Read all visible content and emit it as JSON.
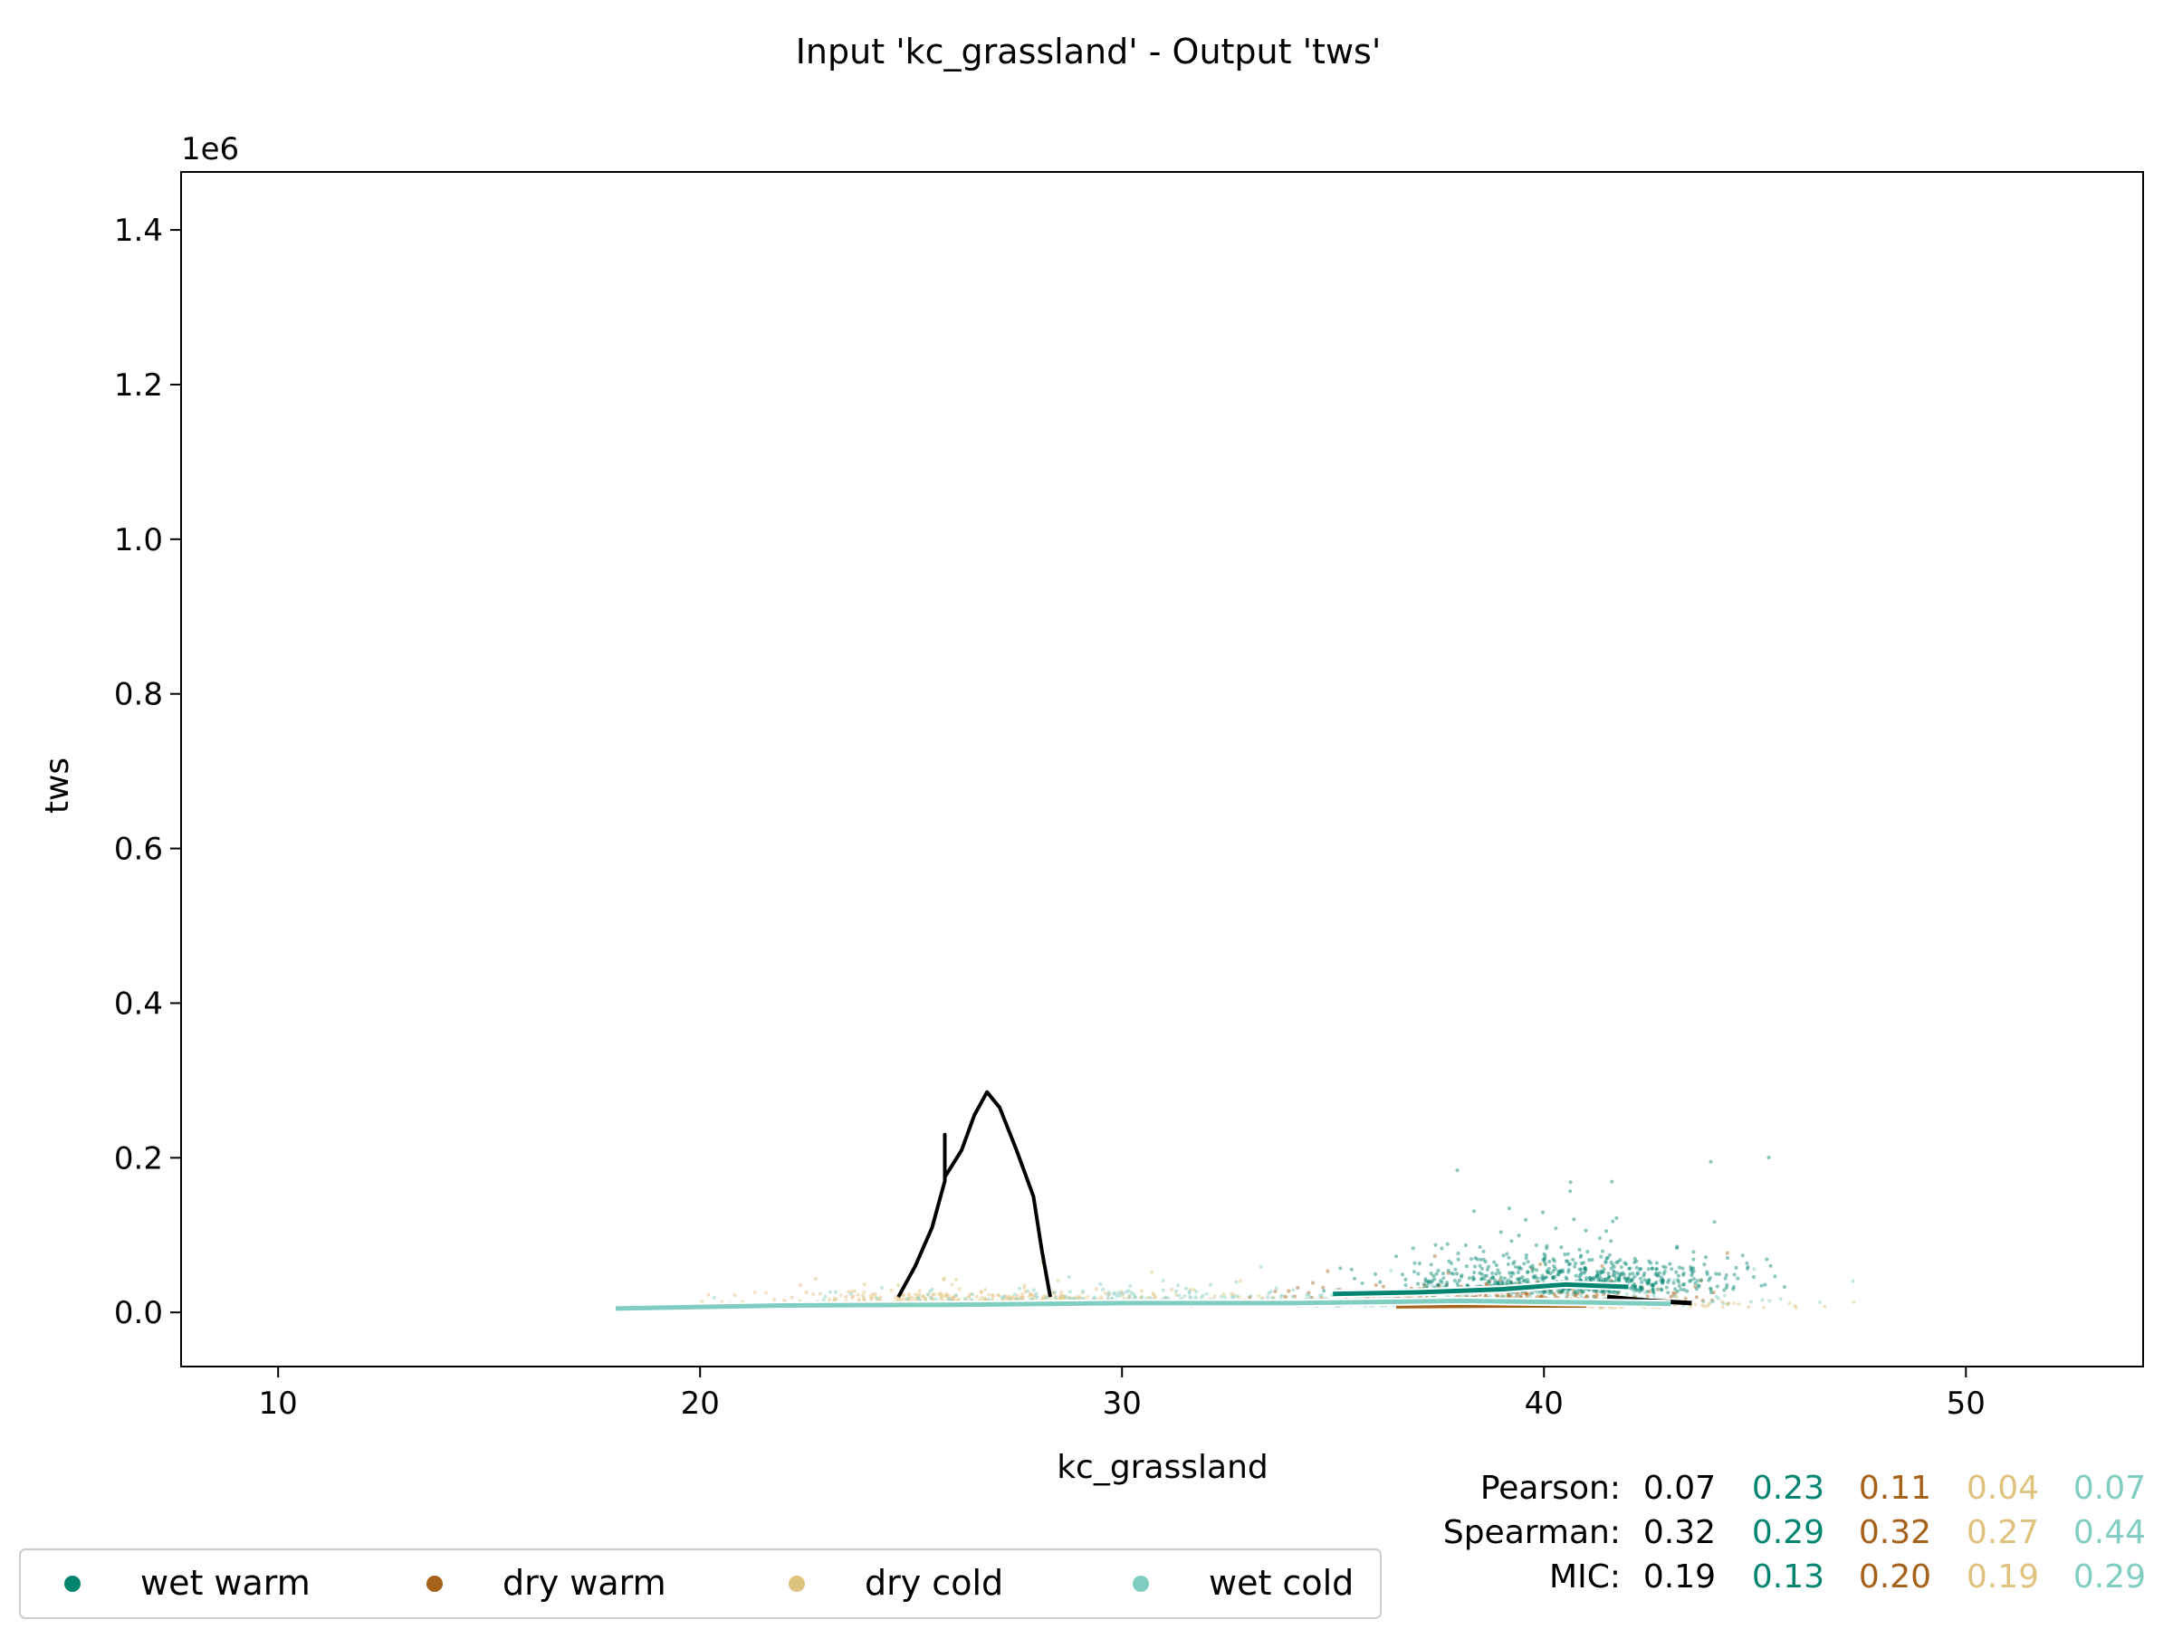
{
  "chart_data": {
    "type": "scatter",
    "title": "Input 'kc_grassland' - Output 'tws'",
    "xlabel": "kc_grassland",
    "ylabel": "tws",
    "y_offset_label": "1e6",
    "xlim": [
      7.7,
      54.2
    ],
    "ylim": [
      -70000,
      1475000
    ],
    "xticks": [
      10,
      20,
      30,
      40,
      50
    ],
    "yticks": [
      0.0,
      0.2,
      0.4,
      0.6,
      0.8,
      1.0,
      1.2,
      1.4
    ],
    "ytick_labels": [
      "0.0",
      "0.2",
      "0.4",
      "0.6",
      "0.8",
      "1.0",
      "1.2",
      "1.4"
    ],
    "grid": false,
    "legend_position": "bottom-left",
    "series": [
      {
        "name": "wet warm",
        "color": "#018571",
        "trend": [
          [
            35.0,
            24000
          ],
          [
            37.0,
            26000
          ],
          [
            39.0,
            30000
          ],
          [
            40.5,
            36000
          ],
          [
            42.0,
            33000
          ]
        ]
      },
      {
        "name": "dry warm",
        "color": "#a6611a",
        "trend": [
          [
            36.5,
            8000
          ],
          [
            38.0,
            8500
          ],
          [
            39.5,
            9000
          ],
          [
            41.0,
            9000
          ]
        ]
      },
      {
        "name": "dry cold",
        "color": "#dfc27d",
        "trend": [
          [
            18.5,
            4000
          ],
          [
            19.5,
            5000
          ],
          [
            20.3,
            6000
          ]
        ]
      },
      {
        "name": "wet cold",
        "color": "#80cdc1",
        "trend": [
          [
            18.0,
            5000
          ],
          [
            22.0,
            9000
          ],
          [
            26.0,
            10000
          ],
          [
            30.0,
            12000
          ],
          [
            34.0,
            12000
          ],
          [
            38.0,
            15000
          ],
          [
            41.0,
            13000
          ],
          [
            43.0,
            11000
          ]
        ]
      }
    ],
    "overall_trend": {
      "color": "#000000",
      "points": [
        [
          24.7,
          20000
        ],
        [
          25.1,
          60000
        ],
        [
          25.5,
          110000
        ],
        [
          25.8,
          170000
        ],
        [
          25.8,
          230000
        ],
        [
          25.8,
          175000
        ],
        [
          26.2,
          210000
        ],
        [
          26.5,
          255000
        ],
        [
          26.8,
          285000
        ],
        [
          27.1,
          265000
        ],
        [
          27.5,
          210000
        ],
        [
          27.9,
          150000
        ],
        [
          28.1,
          80000
        ],
        [
          28.3,
          20000
        ]
      ],
      "tail": [
        [
          41.5,
          20000
        ],
        [
          42.5,
          15000
        ],
        [
          43.5,
          12000
        ]
      ]
    },
    "stats": {
      "labels": [
        "Pearson:",
        "Spearman:",
        "MIC:"
      ],
      "rows": [
        [
          "0.07",
          "0.23",
          "0.11",
          "0.04",
          "0.07"
        ],
        [
          "0.32",
          "0.29",
          "0.32",
          "0.27",
          "0.44"
        ],
        [
          "0.19",
          "0.13",
          "0.20",
          "0.19",
          "0.29"
        ]
      ],
      "colors": [
        "#000000",
        "#018571",
        "#a6611a",
        "#dfc27d",
        "#80cdc1"
      ]
    }
  }
}
